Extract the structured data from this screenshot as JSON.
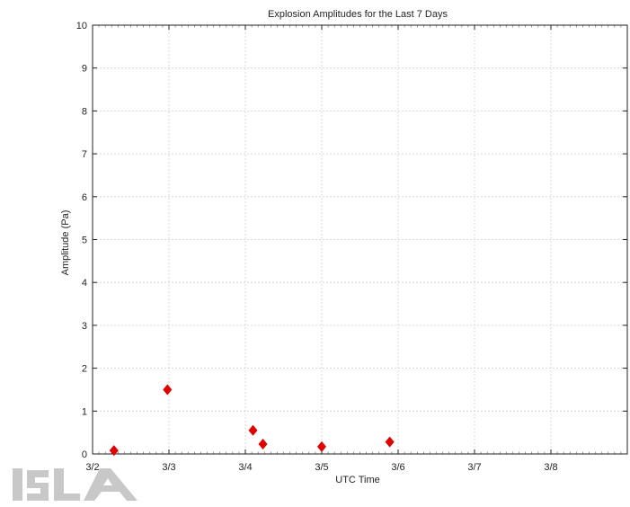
{
  "chart_data": {
    "type": "scatter",
    "title": "Explosion Amplitudes for the Last 7 Days",
    "xlabel": "UTC Time",
    "ylabel": "Amplitude (Pa)",
    "x_tick_labels": [
      "3/2",
      "3/3",
      "3/4",
      "3/5",
      "3/6",
      "3/7",
      "3/8"
    ],
    "y_tick_labels": [
      "0",
      "1",
      "2",
      "3",
      "4",
      "5",
      "6",
      "7",
      "8",
      "9",
      "10"
    ],
    "xlim": [
      0,
      7
    ],
    "ylim": [
      0,
      10
    ],
    "grid": true,
    "marker": "diamond",
    "marker_color": "#e00000",
    "points": [
      {
        "x": 0.28,
        "y": 0.08
      },
      {
        "x": 0.98,
        "y": 1.5
      },
      {
        "x": 2.1,
        "y": 0.55
      },
      {
        "x": 2.23,
        "y": 0.23
      },
      {
        "x": 3.0,
        "y": 0.17
      },
      {
        "x": 3.89,
        "y": 0.28
      }
    ]
  },
  "logo": {
    "text": "ISLA",
    "color": "#c8c8c8"
  }
}
